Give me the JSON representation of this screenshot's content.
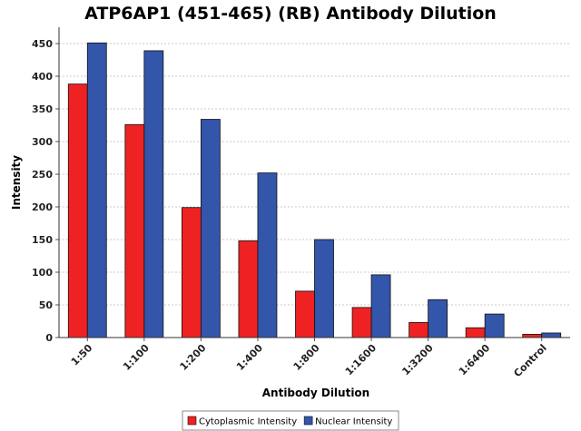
{
  "chart_data": {
    "type": "bar",
    "title": "ATP6AP1 (451-465) (RB) Antibody Dilution",
    "xlabel": "Antibody Dilution",
    "ylabel": "Intensity",
    "categories": [
      "1:50",
      "1:100",
      "1:200",
      "1:400",
      "1:800",
      "1:1600",
      "1:3200",
      "1:6400",
      "Control"
    ],
    "series": [
      {
        "name": "Cytoplasmic Intensity",
        "color": "#ee2222",
        "values": [
          388,
          326,
          199,
          148,
          71,
          46,
          23,
          15,
          5
        ]
      },
      {
        "name": "Nuclear Intensity",
        "color": "#3355aa",
        "values": [
          451,
          439,
          334,
          252,
          150,
          96,
          58,
          36,
          7
        ]
      }
    ],
    "yticks": [
      "0",
      "50",
      "100",
      "150",
      "200",
      "250",
      "300",
      "350",
      "400",
      "450"
    ],
    "ylim": [
      0,
      475
    ],
    "grid": true,
    "legend_position": "bottom"
  }
}
